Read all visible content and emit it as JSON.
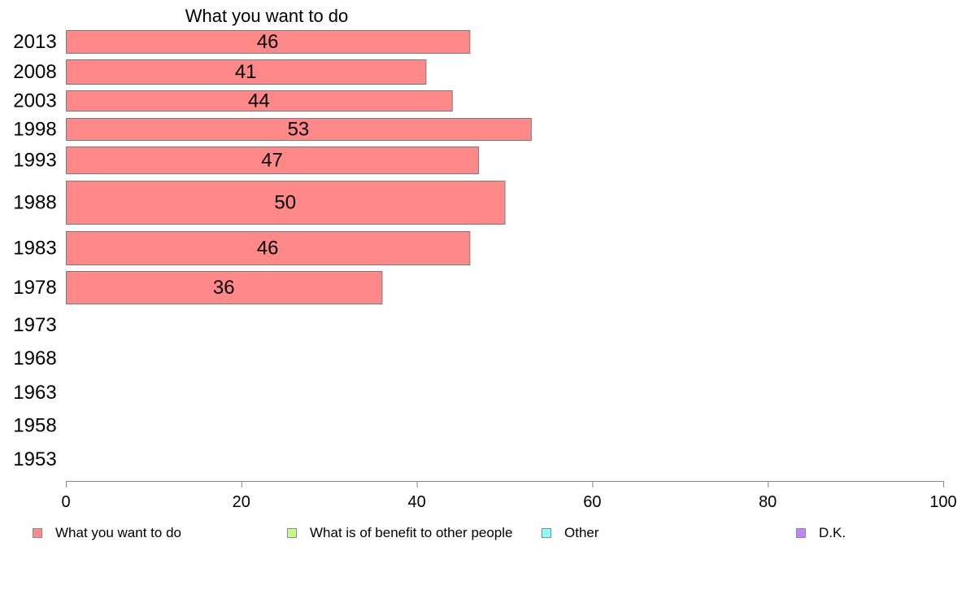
{
  "chart_data": {
    "type": "bar",
    "orientation": "horizontal",
    "title": "What you want to do",
    "categories": [
      "2013",
      "2008",
      "2003",
      "1998",
      "1993",
      "1988",
      "1983",
      "1978",
      "1973",
      "1968",
      "1963",
      "1958",
      "1953"
    ],
    "series": [
      {
        "name": "What you want to do",
        "color": "#ff8888",
        "values": [
          46,
          41,
          44,
          53,
          47,
          50,
          46,
          36,
          null,
          null,
          null,
          null,
          null
        ]
      }
    ],
    "xlim": [
      0,
      100
    ],
    "xticks": [
      0,
      20,
      40,
      60,
      80,
      100
    ],
    "grid": false,
    "legend_position": "bottom"
  },
  "legend": [
    {
      "label": "What you want to do",
      "color": "#ff8888"
    },
    {
      "label": "What is of benefit to other people",
      "color": "#c6ff88"
    },
    {
      "label": "Other",
      "color": "#88ffff"
    },
    {
      "label": "D.K.",
      "color": "#bb88ff"
    }
  ]
}
